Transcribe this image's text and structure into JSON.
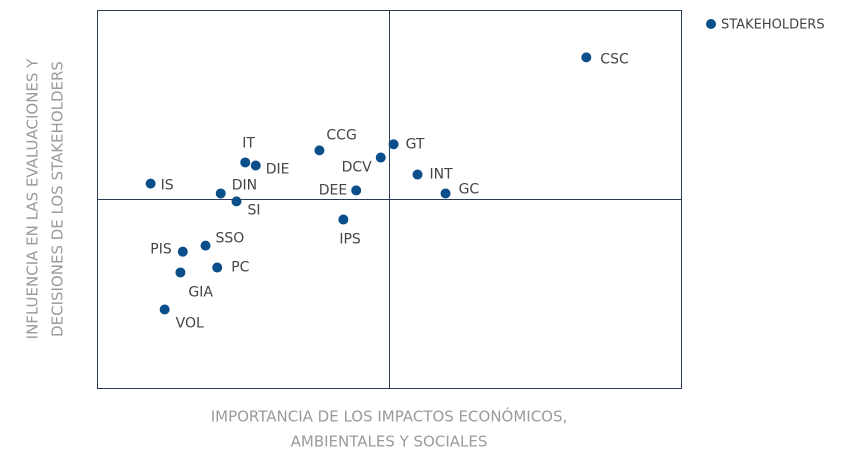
{
  "chart_data": {
    "type": "scatter",
    "x_label": [
      "IMPORTANCIA DE LOS IMPACTOS ECONÓMICOS,",
      "AMBIENTALES Y SOCIALES"
    ],
    "y_label": [
      "INFLUENCIA EN LAS EVALUACIONES Y",
      "DECISIONES DE LOS STAKEHOLDERS"
    ],
    "xlim": [
      0,
      100
    ],
    "ylim": [
      0,
      100
    ],
    "legend": "top-right",
    "series": [
      {
        "name": "STAKEHOLDERS",
        "color": "#0b4f8a",
        "labels": [
          "CSC",
          "IT",
          "DIE",
          "CCG",
          "GT",
          "DCV",
          "INT",
          "IS",
          "DIN",
          "DEE",
          "GC",
          "SI",
          "IPS",
          "SSO",
          "PIS",
          "PC",
          "GIA",
          "VOL"
        ],
        "x": [
          83.7,
          25.3,
          27.1,
          38.0,
          50.7,
          48.5,
          54.8,
          9.1,
          21.1,
          44.3,
          59.6,
          23.8,
          42.1,
          18.5,
          14.6,
          20.5,
          14.2,
          11.5
        ],
        "y": [
          87.6,
          59.8,
          59.0,
          63.0,
          64.6,
          61.1,
          56.6,
          54.2,
          51.6,
          52.4,
          51.6,
          49.5,
          44.7,
          37.8,
          36.2,
          32.0,
          30.7,
          20.9
        ]
      }
    ]
  }
}
